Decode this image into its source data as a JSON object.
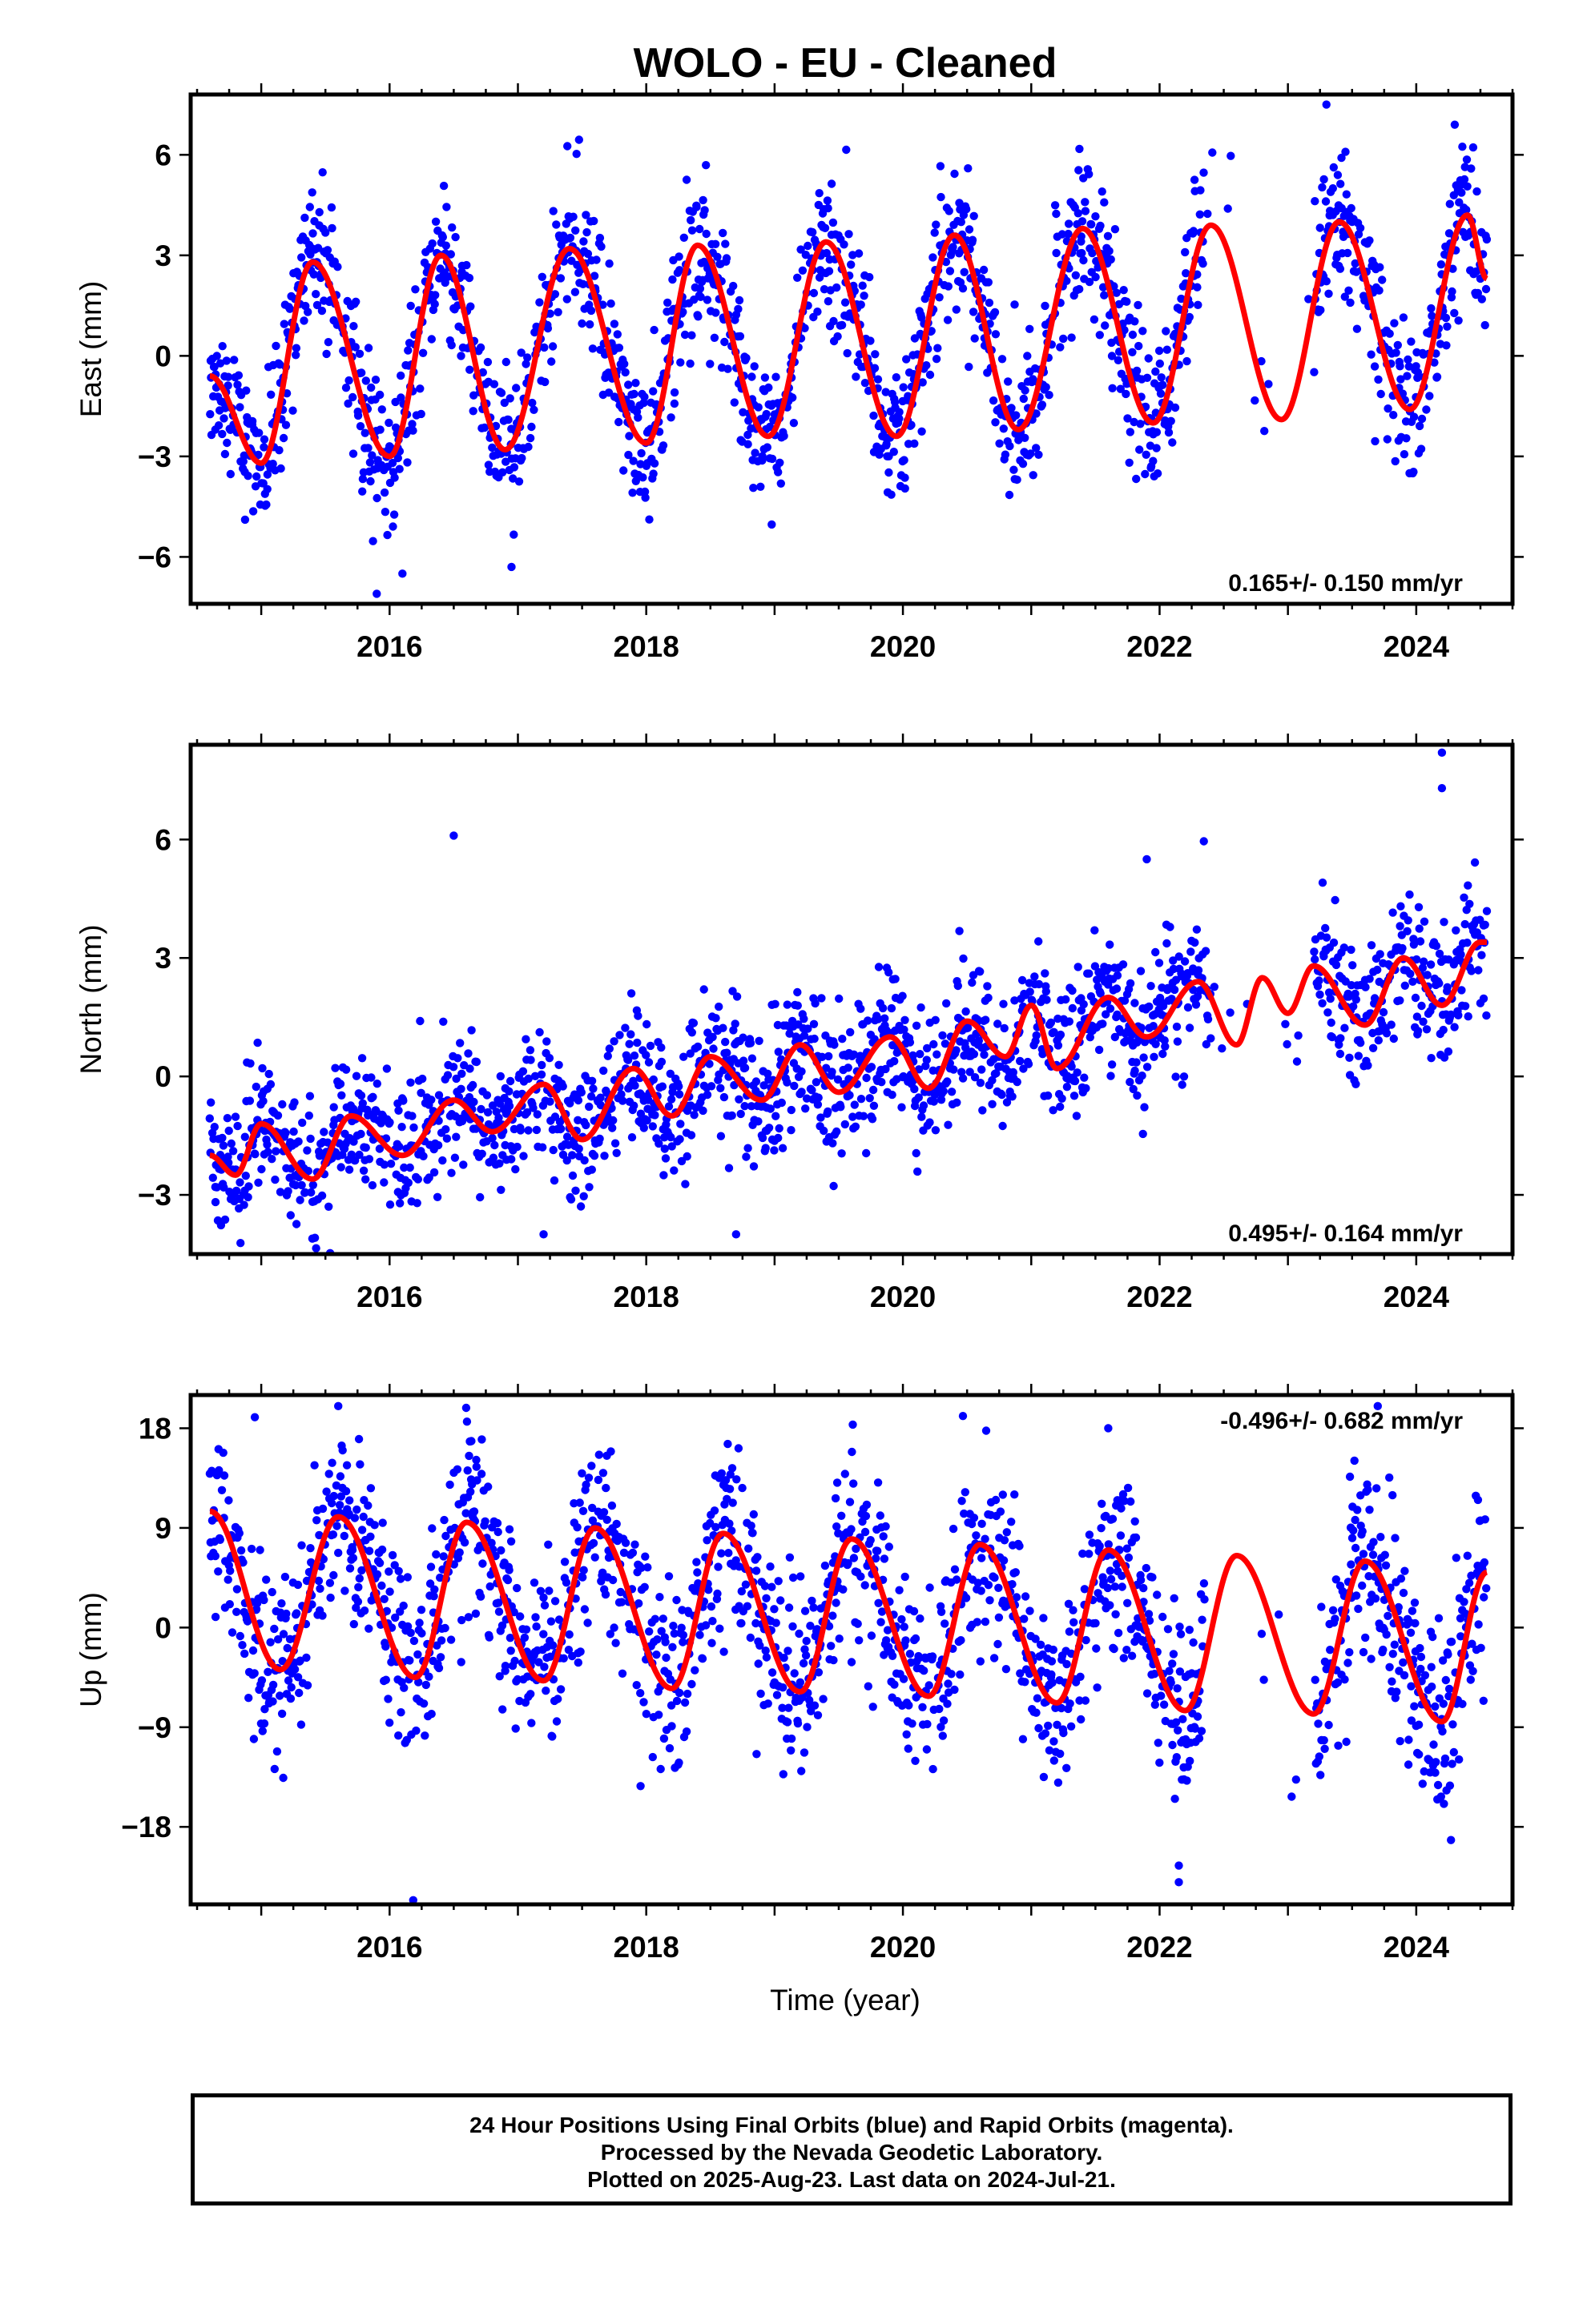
{
  "figure": {
    "title": "WOLO  - EU - Cleaned",
    "xlabel": "Time (year)",
    "footer": [
      "24 Hour Positions Using Final Orbits (blue) and Rapid Orbits (magenta).",
      "Processed by the Nevada Geodetic Laboratory.",
      "Plotted on 2025-Aug-23. Last data on 2024-Jul-21."
    ]
  },
  "colors": {
    "final_orbits": "#0000ff",
    "fit": "#ff0000",
    "frame": "#000000"
  },
  "chart_data": [
    {
      "type": "scatter",
      "ylabel": "East (mm)",
      "rate_text": "0.165+/- 0.150 mm/yr",
      "rate_position": "bottom-right",
      "xlim": [
        2014.45,
        2024.75
      ],
      "ylim": [
        -7.4,
        7.8
      ],
      "xticks": [
        2016,
        2018,
        2020,
        2022,
        2024
      ],
      "yticks": [
        -6,
        -3,
        0,
        3,
        6
      ],
      "ytick_labels": [
        "−6",
        "−3",
        "0",
        "3",
        "6"
      ],
      "data_start": 2014.6,
      "data_end": 2024.55,
      "gaps": [
        [
          2022.35,
          2023.2
        ]
      ],
      "fit": {
        "trend_per_year": 0.165,
        "anchors_x": [
          2014.6,
          2015.0,
          2015.4,
          2016.0,
          2016.4,
          2016.9,
          2017.4,
          2018.0,
          2018.4,
          2018.95,
          2019.4,
          2019.95,
          2020.4,
          2020.9,
          2021.4,
          2021.95,
          2022.4,
          2022.95,
          2023.4,
          2023.95,
          2024.4,
          2024.55
        ],
        "anchors_y": [
          -0.6,
          -3.2,
          2.8,
          -3.0,
          3.0,
          -2.8,
          3.2,
          -2.6,
          3.3,
          -2.4,
          3.4,
          -2.4,
          3.6,
          -2.2,
          3.8,
          -2.0,
          3.9,
          -1.9,
          4.0,
          -1.6,
          4.2,
          2.3
        ]
      },
      "scatter_sigma": 1.1,
      "outliers": [
        {
          "x": 2015.9,
          "y": -7.1
        },
        {
          "x": 2023.3,
          "y": 7.5
        },
        {
          "x": 2024.3,
          "y": 6.9
        },
        {
          "x": 2016.1,
          "y": -6.5
        },
        {
          "x": 2016.95,
          "y": -6.3
        }
      ]
    },
    {
      "type": "scatter",
      "ylabel": "North (mm)",
      "rate_text": "0.495+/- 0.164 mm/yr",
      "rate_position": "bottom-right",
      "xlim": [
        2014.45,
        2024.75
      ],
      "ylim": [
        -4.5,
        8.4
      ],
      "xticks": [
        2016,
        2018,
        2020,
        2022,
        2024
      ],
      "yticks": [
        -3,
        0,
        3,
        6
      ],
      "ytick_labels": [
        "−3",
        "0",
        "3",
        "6"
      ],
      "data_start": 2014.6,
      "data_end": 2024.55,
      "gaps": [
        [
          2022.4,
          2023.2
        ]
      ],
      "fit": {
        "trend_per_year": 0.495,
        "anchors_x": [
          2014.6,
          2014.8,
          2015.0,
          2015.4,
          2015.7,
          2016.1,
          2016.5,
          2016.8,
          2017.2,
          2017.5,
          2017.9,
          2018.2,
          2018.5,
          2018.9,
          2019.2,
          2019.5,
          2019.9,
          2020.2,
          2020.5,
          2020.8,
          2021.0,
          2021.2,
          2021.6,
          2021.9,
          2022.3,
          2022.6,
          2022.8,
          2023.0,
          2023.2,
          2023.6,
          2023.9,
          2024.2,
          2024.5
        ],
        "anchors_y": [
          -2.0,
          -2.5,
          -1.2,
          -2.6,
          -1.0,
          -2.0,
          -0.6,
          -1.4,
          -0.2,
          -1.6,
          0.2,
          -1.0,
          0.5,
          -0.6,
          0.8,
          -0.4,
          1.0,
          -0.3,
          1.4,
          0.5,
          1.8,
          0.2,
          2.0,
          1.0,
          2.4,
          0.8,
          2.5,
          1.6,
          2.8,
          1.3,
          3.0,
          1.8,
          3.4
        ]
      },
      "scatter_sigma": 0.85,
      "outliers": [
        {
          "x": 2016.5,
          "y": 6.1
        },
        {
          "x": 2024.2,
          "y": 8.2
        },
        {
          "x": 2024.2,
          "y": 7.3
        },
        {
          "x": 2021.9,
          "y": 5.5
        },
        {
          "x": 2018.7,
          "y": -4.0
        },
        {
          "x": 2017.2,
          "y": -4.0
        }
      ]
    },
    {
      "type": "scatter",
      "ylabel": "Up (mm)",
      "rate_text": "-0.496+/- 0.682 mm/yr",
      "rate_position": "top-right",
      "xlim": [
        2014.45,
        2024.75
      ],
      "ylim": [
        -25,
        21
      ],
      "xticks": [
        2016,
        2018,
        2020,
        2022,
        2024
      ],
      "yticks": [
        -18,
        -9,
        0,
        9,
        18
      ],
      "ytick_labels": [
        "−18",
        "−9",
        "0",
        "9",
        "18"
      ],
      "data_start": 2014.6,
      "data_end": 2024.55,
      "gaps": [
        [
          2022.35,
          2023.2
        ]
      ],
      "fit": {
        "trend_per_year": -0.496,
        "anchors_x": [
          2014.6,
          2015.15,
          2015.6,
          2016.2,
          2016.6,
          2017.2,
          2017.6,
          2018.2,
          2018.6,
          2019.2,
          2019.6,
          2020.2,
          2020.6,
          2021.2,
          2021.6,
          2022.2,
          2022.6,
          2023.2,
          2023.6,
          2024.2,
          2024.55
        ],
        "anchors_y": [
          10.5,
          -3.8,
          10.0,
          -4.5,
          9.5,
          -4.8,
          9.0,
          -5.5,
          8.5,
          -5.8,
          8.0,
          -6.2,
          7.5,
          -6.8,
          7.0,
          -7.5,
          6.5,
          -7.8,
          6.0,
          -8.5,
          5.0
        ]
      },
      "scatter_sigma": 4.2,
      "outliers": [
        {
          "x": 2022.15,
          "y": -23.0
        },
        {
          "x": 2022.15,
          "y": -21.5
        },
        {
          "x": 2015.6,
          "y": 20.0
        },
        {
          "x": 2014.95,
          "y": 19.0
        },
        {
          "x": 2023.7,
          "y": 20.0
        },
        {
          "x": 2021.6,
          "y": 18.0
        }
      ]
    }
  ]
}
